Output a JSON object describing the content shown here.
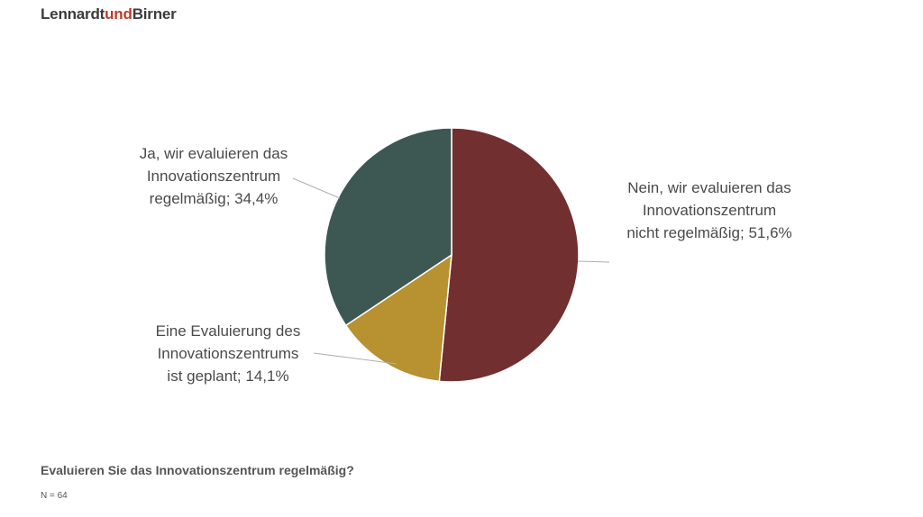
{
  "brand": {
    "part1": "Lennardt",
    "part2": "und",
    "part3": "Birner",
    "accent_color": "#c0392b"
  },
  "footer": {
    "question": "Evaluieren Sie das Innovationszentrum regelmäßig?",
    "sample": "N = 64"
  },
  "chart_data": {
    "type": "pie",
    "title": "",
    "slices": [
      {
        "label": [
          "Nein, wir evaluieren das",
          "Innovationszentrum",
          "nicht regelmäßig; 51,6%"
        ],
        "value": 51.6,
        "color": "#722f2f"
      },
      {
        "label": [
          "Eine Evaluierung des",
          "Innovationszentrums",
          "ist geplant; 14,1%"
        ],
        "value": 14.1,
        "color": "#b89130"
      },
      {
        "label": [
          "Ja, wir evaluieren das",
          "Innovationszentrum",
          "regelmäßig; 34,4%"
        ],
        "value": 34.4,
        "color": "#3d5753"
      }
    ]
  }
}
